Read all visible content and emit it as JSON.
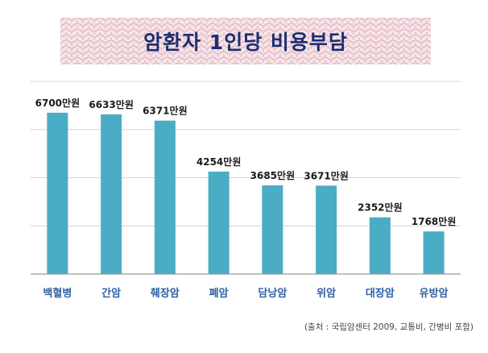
{
  "chart_data": {
    "type": "bar",
    "title": "암환자 1인당 비용부담",
    "categories": [
      "백혈병",
      "간암",
      "췌장암",
      "폐암",
      "담낭암",
      "위암",
      "대장암",
      "유방암"
    ],
    "values": [
      6700,
      6633,
      6371,
      4254,
      3685,
      3671,
      2352,
      1768
    ],
    "value_labels": [
      "6700만원",
      "6633만원",
      "6371만원",
      "4254만원",
      "3685만원",
      "3671만원",
      "2352만원",
      "1768만원"
    ],
    "xlabel": "",
    "ylabel": "",
    "ylim": [
      0,
      8000
    ],
    "grid": true,
    "bar_color": "#4bacc6",
    "label_color": "#2e5fa3",
    "source": "(출처 : 국립암센터 2009, 교통비, 간병비 포함)"
  }
}
